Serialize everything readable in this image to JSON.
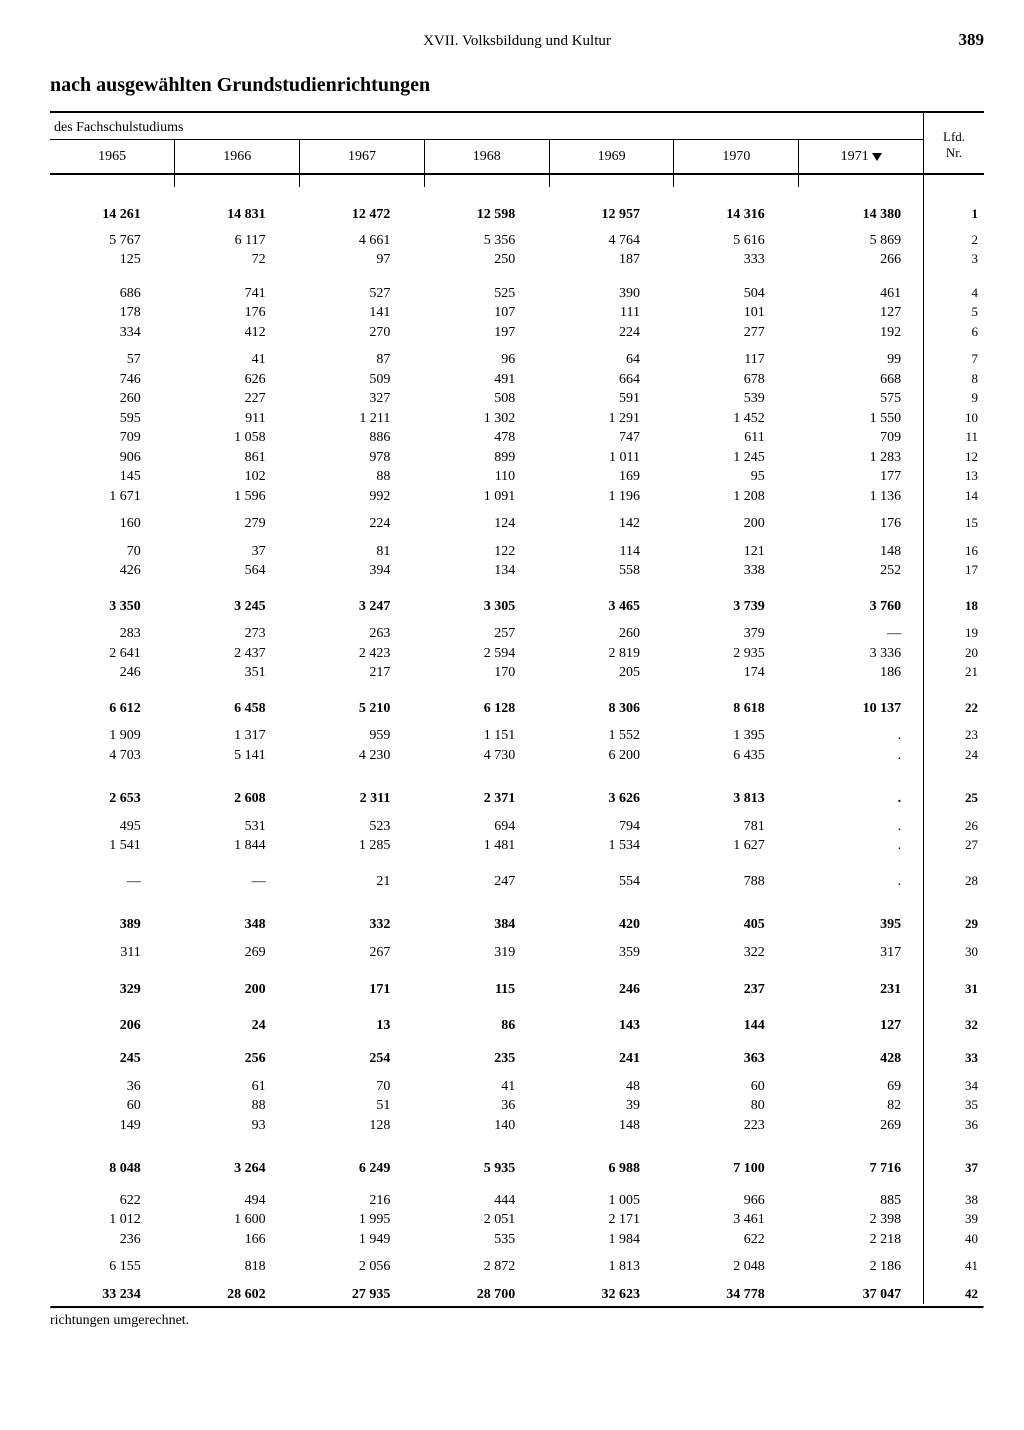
{
  "page": {
    "chapter": "XVII. Volksbildung und Kultur",
    "number": "389",
    "subtitle": "nach ausgewählten Grundstudienrichtungen",
    "table_caption": "des Fachschulstudiums",
    "lfd_header_top": "Lfd.",
    "lfd_header_bot": "Nr.",
    "footnote": "richtungen umgerechnet."
  },
  "table": {
    "type": "table",
    "background_color": "#ffffff",
    "text_color": "#000000",
    "rule_color": "#000000",
    "font_family": "Times New Roman",
    "header_fontsize": 14,
    "body_fontsize": 14,
    "col_widths_pct": [
      12.2,
      12.2,
      12.2,
      12.2,
      12.2,
      12.2,
      12.2,
      5.4
    ],
    "years": [
      "1965",
      "1966",
      "1967",
      "1968",
      "1969",
      "1970",
      "1971"
    ],
    "year_1971_has_triangle": true,
    "groups": [
      {
        "gap_before": 18,
        "rows": [
          {
            "lfd": "1",
            "bold": true,
            "cells": [
              "14 261",
              "14 831",
              "12 472",
              "12 598",
              "12 957",
              "14 316",
              "14 380"
            ]
          }
        ]
      },
      {
        "gap_before": 6,
        "rows": [
          {
            "lfd": "2",
            "cells": [
              "5 767",
              "6 117",
              "4 661",
              "5 356",
              "4 764",
              "5 616",
              "5 869"
            ]
          },
          {
            "lfd": "3",
            "cells": [
              "125",
              "72",
              "97",
              "250",
              "187",
              "333",
              "266"
            ]
          }
        ]
      },
      {
        "gap_before": 14,
        "rows": [
          {
            "lfd": "4",
            "cells": [
              "686",
              "741",
              "527",
              "525",
              "390",
              "504",
              "461"
            ]
          },
          {
            "lfd": "5",
            "cells": [
              "178",
              "176",
              "141",
              "107",
              "111",
              "101",
              "127"
            ]
          },
          {
            "lfd": "6",
            "cells": [
              "334",
              "412",
              "270",
              "197",
              "224",
              "277",
              "192"
            ]
          }
        ]
      },
      {
        "gap_before": 8,
        "rows": [
          {
            "lfd": "7",
            "cells": [
              "57",
              "41",
              "87",
              "96",
              "64",
              "117",
              "99"
            ]
          },
          {
            "lfd": "8",
            "cells": [
              "746",
              "626",
              "509",
              "491",
              "664",
              "678",
              "668"
            ]
          },
          {
            "lfd": "9",
            "cells": [
              "260",
              "227",
              "327",
              "508",
              "591",
              "539",
              "575"
            ]
          },
          {
            "lfd": "10",
            "cells": [
              "595",
              "911",
              "1 211",
              "1 302",
              "1 291",
              "1 452",
              "1 550"
            ]
          },
          {
            "lfd": "11",
            "cells": [
              "709",
              "1 058",
              "886",
              "478",
              "747",
              "611",
              "709"
            ]
          },
          {
            "lfd": "12",
            "cells": [
              "906",
              "861",
              "978",
              "899",
              "1 011",
              "1 245",
              "1 283"
            ]
          },
          {
            "lfd": "13",
            "cells": [
              "145",
              "102",
              "88",
              "110",
              "169",
              "95",
              "177"
            ]
          },
          {
            "lfd": "14",
            "cells": [
              "1 671",
              "1 596",
              "992",
              "1 091",
              "1 196",
              "1 208",
              "1 136"
            ]
          }
        ]
      },
      {
        "gap_before": 8,
        "rows": [
          {
            "lfd": "15",
            "cells": [
              "160",
              "279",
              "224",
              "124",
              "142",
              "200",
              "176"
            ]
          }
        ]
      },
      {
        "gap_before": 8,
        "rows": [
          {
            "lfd": "16",
            "cells": [
              "70",
              "37",
              "81",
              "122",
              "114",
              "121",
              "148"
            ]
          },
          {
            "lfd": "17",
            "cells": [
              "426",
              "564",
              "394",
              "134",
              "558",
              "338",
              "252"
            ]
          }
        ]
      },
      {
        "gap_before": 16,
        "rows": [
          {
            "lfd": "18",
            "bold": true,
            "cells": [
              "3 350",
              "3 245",
              "3 247",
              "3 305",
              "3 465",
              "3 739",
              "3 760"
            ]
          }
        ]
      },
      {
        "gap_before": 8,
        "rows": [
          {
            "lfd": "19",
            "cells": [
              "283",
              "273",
              "263",
              "257",
              "260",
              "379",
              "—"
            ]
          },
          {
            "lfd": "20",
            "cells": [
              "2 641",
              "2 437",
              "2 423",
              "2 594",
              "2 819",
              "2 935",
              "3 336"
            ]
          },
          {
            "lfd": "21",
            "cells": [
              "246",
              "351",
              "217",
              "170",
              "205",
              "174",
              "186"
            ]
          }
        ]
      },
      {
        "gap_before": 16,
        "rows": [
          {
            "lfd": "22",
            "bold": true,
            "cells": [
              "6 612",
              "6 458",
              "5 210",
              "6 128",
              "8 306",
              "8 618",
              "10 137"
            ]
          }
        ]
      },
      {
        "gap_before": 8,
        "rows": [
          {
            "lfd": "23",
            "cells": [
              "1 909",
              "1 317",
              "959",
              "1 151",
              "1 552",
              "1 395",
              "."
            ]
          },
          {
            "lfd": "24",
            "cells": [
              "4 703",
              "5 141",
              "4 230",
              "4 730",
              "6 200",
              "6 435",
              "."
            ]
          }
        ]
      },
      {
        "gap_before": 24,
        "rows": [
          {
            "lfd": "25",
            "bold": true,
            "cells": [
              "2 653",
              "2 608",
              "2 311",
              "2 371",
              "3 626",
              "3 813",
              "."
            ]
          }
        ]
      },
      {
        "gap_before": 8,
        "rows": [
          {
            "lfd": "26",
            "cells": [
              "495",
              "531",
              "523",
              "694",
              "794",
              "781",
              "."
            ]
          },
          {
            "lfd": "27",
            "cells": [
              "1 541",
              "1 844",
              "1 285",
              "1 481",
              "1 534",
              "1 627",
              "."
            ]
          }
        ]
      },
      {
        "gap_before": 16,
        "rows": [
          {
            "lfd": "28",
            "cells": [
              "—",
              "—",
              "21",
              "247",
              "554",
              "788",
              "."
            ]
          }
        ]
      },
      {
        "gap_before": 24,
        "rows": [
          {
            "lfd": "29",
            "bold": true,
            "cells": [
              "389",
              "348",
              "332",
              "384",
              "420",
              "405",
              "395"
            ]
          }
        ]
      },
      {
        "gap_before": 8,
        "rows": [
          {
            "lfd": "30",
            "cells": [
              "311",
              "269",
              "267",
              "319",
              "359",
              "322",
              "317"
            ]
          }
        ]
      },
      {
        "gap_before": 18,
        "rows": [
          {
            "lfd": "31",
            "bold": true,
            "cells": [
              "329",
              "200",
              "171",
              "115",
              "246",
              "237",
              "231"
            ]
          }
        ]
      },
      {
        "gap_before": 16,
        "rows": [
          {
            "lfd": "32",
            "bold": true,
            "cells": [
              "206",
              "24",
              "13",
              "86",
              "143",
              "144",
              "127"
            ]
          }
        ]
      },
      {
        "gap_before": 14,
        "rows": [
          {
            "lfd": "33",
            "bold": true,
            "cells": [
              "245",
              "256",
              "254",
              "235",
              "241",
              "363",
              "428"
            ]
          }
        ]
      },
      {
        "gap_before": 8,
        "rows": [
          {
            "lfd": "34",
            "cells": [
              "36",
              "61",
              "70",
              "41",
              "48",
              "60",
              "69"
            ]
          },
          {
            "lfd": "35",
            "cells": [
              "60",
              "88",
              "51",
              "36",
              "39",
              "80",
              "82"
            ]
          },
          {
            "lfd": "36",
            "cells": [
              "149",
              "93",
              "128",
              "140",
              "148",
              "223",
              "269"
            ]
          }
        ]
      },
      {
        "gap_before": 24,
        "rows": [
          {
            "lfd": "37",
            "bold": true,
            "cells": [
              "8 048",
              "3 264",
              "6 249",
              "5 935",
              "6 988",
              "7 100",
              "7 716"
            ]
          }
        ]
      },
      {
        "gap_before": 12,
        "rows": [
          {
            "lfd": "38",
            "cells": [
              "622",
              "494",
              "216",
              "444",
              "1 005",
              "966",
              "885"
            ]
          },
          {
            "lfd": "39",
            "cells": [
              "1 012",
              "1 600",
              "1 995",
              "2 051",
              "2 171",
              "3 461",
              "2 398"
            ]
          },
          {
            "lfd": "40",
            "cells": [
              "236",
              "166",
              "1 949",
              "535",
              "1 984",
              "622",
              "2 218"
            ]
          }
        ]
      },
      {
        "gap_before": 8,
        "rows": [
          {
            "lfd": "41",
            "cells": [
              "6 155",
              "818",
              "2 056",
              "2 872",
              "1 813",
              "2 048",
              "2 186"
            ]
          }
        ]
      },
      {
        "gap_before": 8,
        "rows": [
          {
            "lfd": "42",
            "bold": true,
            "cells": [
              "33 234",
              "28 602",
              "27 935",
              "28 700",
              "32 623",
              "34 778",
              "37 047"
            ]
          }
        ]
      }
    ]
  }
}
